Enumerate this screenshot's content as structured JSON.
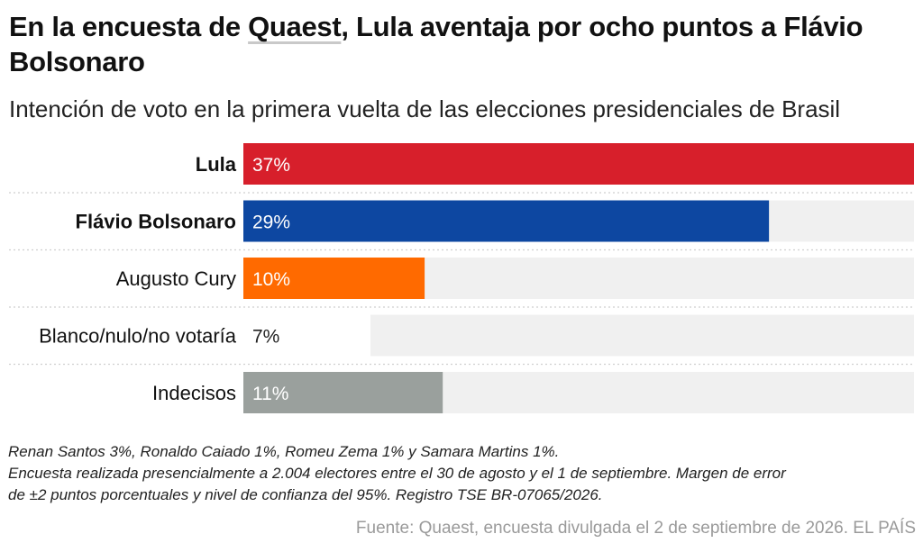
{
  "title": {
    "before": "En la encuesta de ",
    "link": "Quaest",
    "after": ", Lula aventaja por ocho puntos a Flávio Bolsonaro"
  },
  "subtitle": "Intención de voto en la primera vuelta de las elecciones presidenciales de Brasil",
  "chart_data": {
    "type": "bar",
    "orientation": "horizontal",
    "xlim": [
      0,
      37
    ],
    "categories": [
      "Lula",
      "Flávio Bolsonaro",
      "Augusto Cury",
      "Blanco/nulo/no votaría",
      "Indecisos"
    ],
    "values": [
      37,
      29,
      10,
      7,
      11
    ],
    "value_labels": [
      "37%",
      "29%",
      "10%",
      "7%",
      "11%"
    ],
    "bold_categories": [
      true,
      true,
      false,
      false,
      false
    ],
    "colors": [
      "#d71f2b",
      "#0d47a1",
      "#ff6a00",
      "#f0f0f0",
      "#9aa09d"
    ],
    "label_colors": [
      "#ffffff",
      "#ffffff",
      "#ffffff",
      "#222222",
      "#ffffff"
    ],
    "track_color": "#f0f0f0"
  },
  "notes": [
    "Renan Santos 3%, Ronaldo Caiado 1%, Romeu Zema 1% y Samara Martins 1%.",
    "Encuesta realizada presencialmente a 2.004 electores entre el 30 de agosto y el 1 de septiembre. Margen de error",
    "de ±2 puntos porcentuales y nivel de confianza del 95%. Registro TSE BR-07065/2026."
  ],
  "source": "Fuente: Quaest, encuesta divulgada el 2 de septiembre de 2026. EL PAÍS"
}
